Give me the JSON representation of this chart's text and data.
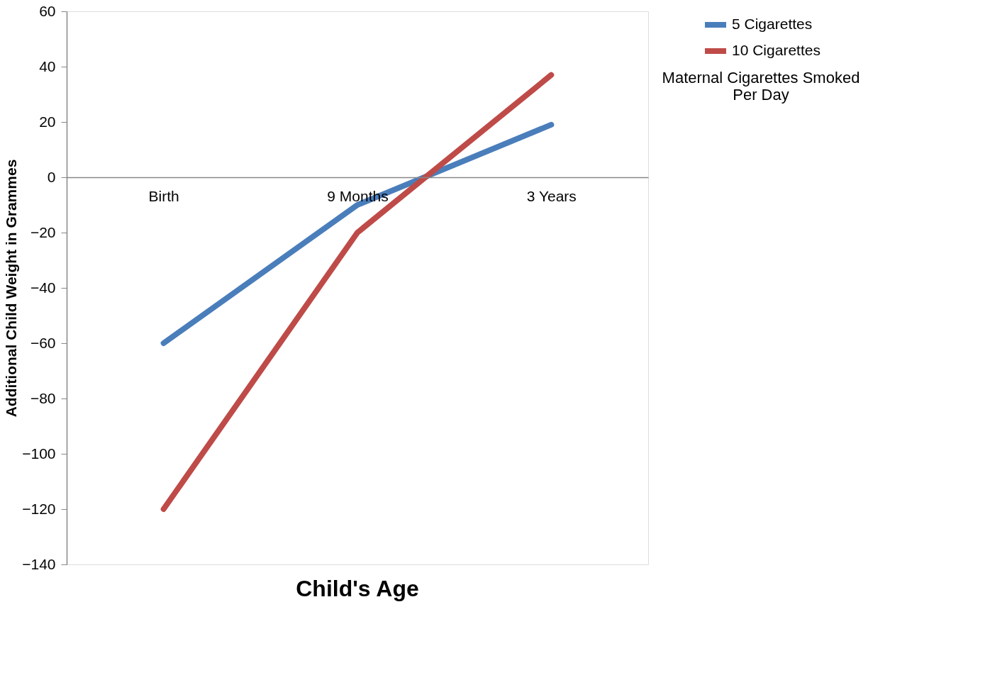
{
  "chart_data": {
    "type": "line",
    "xlabel": "Child's Age",
    "ylabel": "Additional Child Weight in Grammes",
    "legend_title": "Maternal Cigarettes Smoked Per Day",
    "categories": [
      "Birth",
      "9 Months",
      "3 Years"
    ],
    "series": [
      {
        "name": "5 Cigarettes",
        "color": "#4a7ebb",
        "values": [
          -60,
          -10,
          19
        ]
      },
      {
        "name": "10 Cigarettes",
        "color": "#be4b48",
        "values": [
          -120,
          -20,
          37
        ]
      }
    ],
    "ylim": [
      -140,
      60
    ],
    "yticks": [
      -140,
      -120,
      -100,
      -80,
      -60,
      -40,
      -20,
      0,
      20,
      40,
      60
    ],
    "grid": false,
    "legend": "right",
    "marker": "none",
    "line_style": "solid"
  }
}
